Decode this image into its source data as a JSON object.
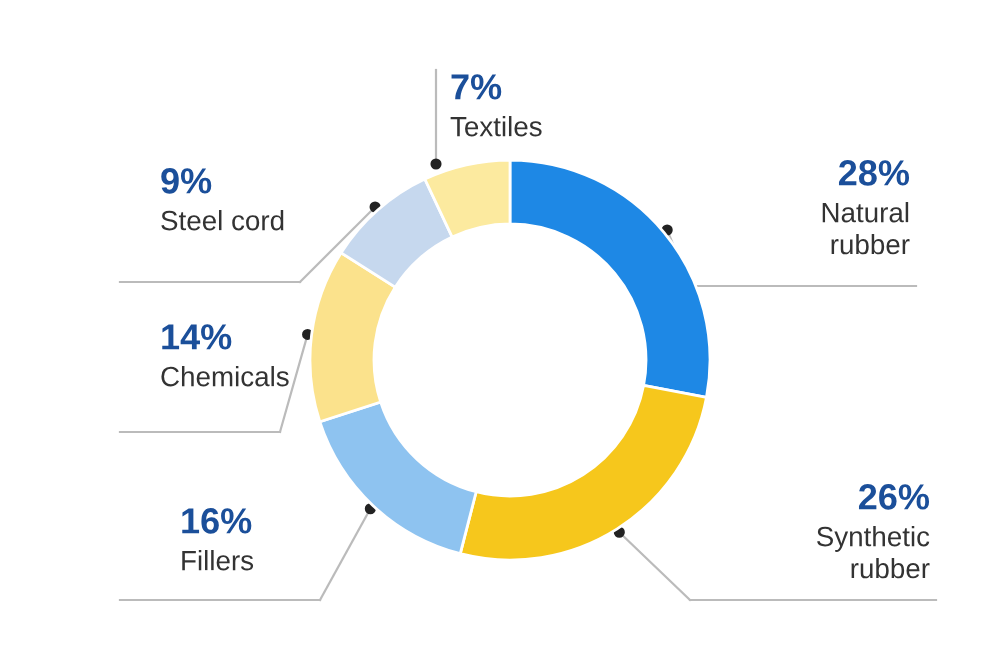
{
  "chart_data": {
    "type": "donut",
    "categories": [
      "Natural\nrubber",
      "Synthetic\nrubber",
      "Fillers",
      "Chemicals",
      "Steel cord",
      "Textiles"
    ],
    "values": [
      28,
      26,
      16,
      14,
      9,
      7
    ],
    "value_labels": [
      "28%",
      "26%",
      "16%",
      "14%",
      "9%",
      "7%"
    ],
    "colors": [
      "#1e88e5",
      "#f6c71c",
      "#8ec3f0",
      "#fbe28c",
      "#c6d8ee",
      "#fcea9f"
    ]
  }
}
